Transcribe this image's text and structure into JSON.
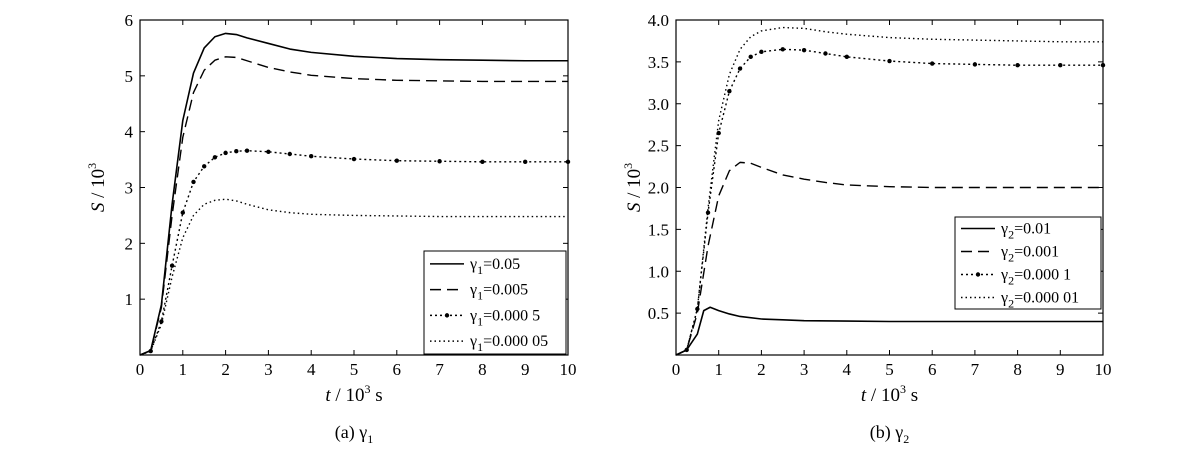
{
  "chart_data": [
    {
      "type": "line",
      "caption": "(a) γ1",
      "xlabel": "t / 10³ s",
      "ylabel": "S / 10³",
      "xlim": [
        0,
        10
      ],
      "ylim": [
        0,
        6
      ],
      "xticks": [
        "0",
        "1",
        "2",
        "3",
        "4",
        "5",
        "6",
        "7",
        "8",
        "9",
        "10"
      ],
      "yticks": [
        "1",
        "2",
        "3",
        "4",
        "5",
        "6"
      ],
      "legend_position": "bottom-right",
      "grid": false,
      "series": [
        {
          "name": "γ1=0.05",
          "style": "solid",
          "x": [
            0,
            0.25,
            0.5,
            0.75,
            1,
            1.25,
            1.5,
            1.75,
            2,
            2.25,
            2.5,
            3,
            3.5,
            4,
            5,
            6,
            7,
            8,
            9,
            10
          ],
          "y": [
            0,
            0.08,
            0.9,
            2.7,
            4.2,
            5.05,
            5.5,
            5.7,
            5.76,
            5.74,
            5.68,
            5.58,
            5.48,
            5.42,
            5.35,
            5.31,
            5.29,
            5.28,
            5.27,
            5.27
          ]
        },
        {
          "name": "γ1=0.005",
          "style": "dashed",
          "x": [
            0,
            0.25,
            0.5,
            0.75,
            1,
            1.25,
            1.5,
            1.75,
            2,
            2.25,
            2.5,
            3,
            3.5,
            4,
            5,
            6,
            7,
            8,
            9,
            10
          ],
          "y": [
            0,
            0.08,
            0.85,
            2.5,
            3.9,
            4.7,
            5.1,
            5.28,
            5.34,
            5.33,
            5.27,
            5.15,
            5.07,
            5.01,
            4.95,
            4.92,
            4.91,
            4.9,
            4.9,
            4.9
          ]
        },
        {
          "name": "γ1=0.000 5",
          "style": "dot-marker",
          "x": [
            0,
            0.25,
            0.5,
            0.75,
            1,
            1.25,
            1.5,
            1.75,
            2,
            2.25,
            2.5,
            3,
            3.5,
            4,
            5,
            6,
            7,
            8,
            9,
            10
          ],
          "y": [
            0,
            0.07,
            0.6,
            1.6,
            2.55,
            3.1,
            3.38,
            3.54,
            3.62,
            3.65,
            3.66,
            3.64,
            3.6,
            3.56,
            3.51,
            3.48,
            3.47,
            3.46,
            3.46,
            3.46
          ]
        },
        {
          "name": "γ1=0.000 05",
          "style": "dotted",
          "x": [
            0,
            0.25,
            0.5,
            0.75,
            1,
            1.25,
            1.5,
            1.75,
            2,
            2.25,
            2.5,
            3,
            3.5,
            4,
            5,
            6,
            7,
            8,
            9,
            10
          ],
          "y": [
            0,
            0.07,
            0.55,
            1.4,
            2.1,
            2.5,
            2.7,
            2.77,
            2.79,
            2.76,
            2.7,
            2.6,
            2.55,
            2.52,
            2.5,
            2.49,
            2.48,
            2.48,
            2.48,
            2.48
          ]
        }
      ]
    },
    {
      "type": "line",
      "caption": "(b) γ2",
      "xlabel": "t / 10³ s",
      "ylabel": "S / 10³",
      "xlim": [
        0,
        10
      ],
      "ylim": [
        0,
        4
      ],
      "xticks": [
        "0",
        "1",
        "2",
        "3",
        "4",
        "5",
        "6",
        "7",
        "8",
        "9",
        "10"
      ],
      "yticks": [
        "0.5",
        "1.0",
        "1.5",
        "2.0",
        "2.5",
        "3.0",
        "3.5",
        "4.0"
      ],
      "legend_position": "bottom-right",
      "grid": false,
      "series": [
        {
          "name": "γ2=0.01",
          "style": "solid",
          "x": [
            0,
            0.25,
            0.5,
            0.65,
            0.8,
            1,
            1.25,
            1.5,
            2,
            2.5,
            3,
            4,
            5,
            6,
            7,
            8,
            9,
            10
          ],
          "y": [
            0,
            0.06,
            0.25,
            0.53,
            0.57,
            0.53,
            0.49,
            0.46,
            0.43,
            0.42,
            0.41,
            0.405,
            0.4,
            0.4,
            0.4,
            0.4,
            0.4,
            0.4
          ]
        },
        {
          "name": "γ2=0.001",
          "style": "dashed",
          "x": [
            0,
            0.25,
            0.5,
            0.75,
            1,
            1.25,
            1.5,
            1.75,
            2,
            2.5,
            3,
            3.5,
            4,
            5,
            6,
            7,
            8,
            9,
            10
          ],
          "y": [
            0,
            0.06,
            0.5,
            1.3,
            1.9,
            2.2,
            2.3,
            2.29,
            2.24,
            2.15,
            2.1,
            2.06,
            2.03,
            2.01,
            2.0,
            2.0,
            2.0,
            2.0,
            2.0
          ]
        },
        {
          "name": "γ2=0.000 1",
          "style": "dot-marker",
          "x": [
            0,
            0.25,
            0.5,
            0.75,
            1,
            1.25,
            1.5,
            1.75,
            2,
            2.5,
            3,
            3.5,
            4,
            5,
            6,
            7,
            8,
            9,
            10
          ],
          "y": [
            0,
            0.06,
            0.55,
            1.7,
            2.65,
            3.15,
            3.42,
            3.56,
            3.62,
            3.65,
            3.64,
            3.6,
            3.56,
            3.51,
            3.48,
            3.47,
            3.46,
            3.46,
            3.46
          ]
        },
        {
          "name": "γ2=0.000 01",
          "style": "dotted",
          "x": [
            0,
            0.25,
            0.5,
            0.75,
            1,
            1.25,
            1.5,
            1.75,
            2,
            2.5,
            3,
            3.5,
            4,
            5,
            6,
            7,
            8,
            9,
            10
          ],
          "y": [
            0,
            0.06,
            0.55,
            1.75,
            2.8,
            3.35,
            3.65,
            3.8,
            3.87,
            3.91,
            3.9,
            3.86,
            3.83,
            3.79,
            3.77,
            3.76,
            3.75,
            3.74,
            3.74
          ]
        }
      ]
    }
  ]
}
